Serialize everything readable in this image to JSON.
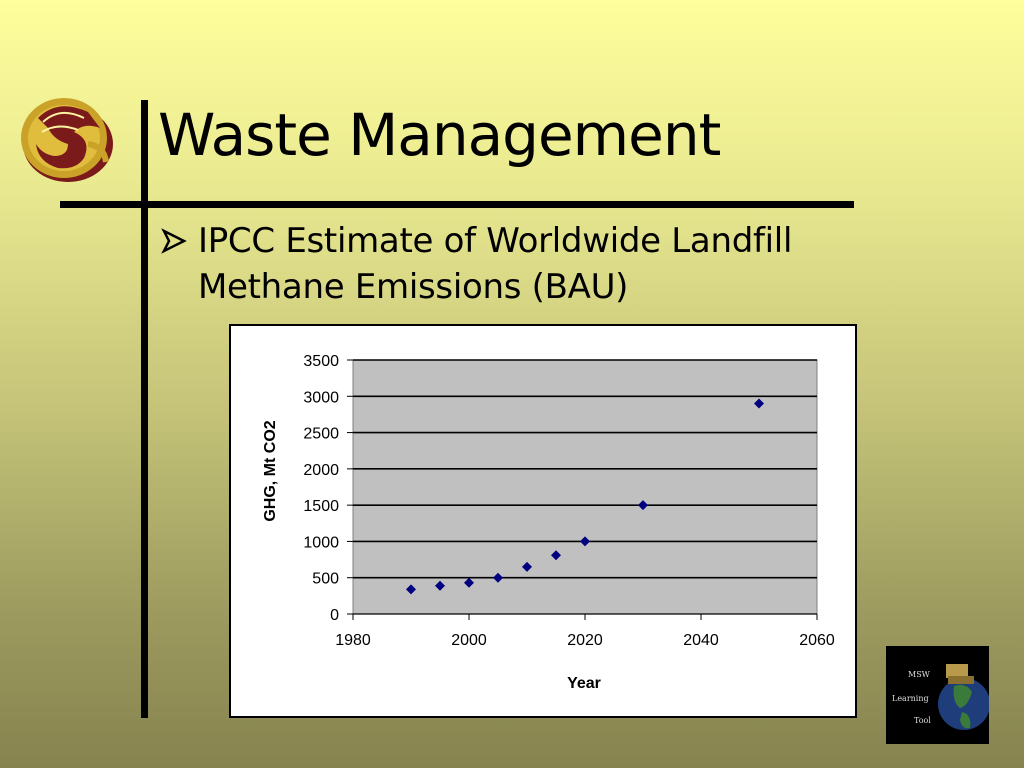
{
  "slide": {
    "title": "Waste Management",
    "bullet": "IPCC Estimate of Worldwide Landfill Methane Emissions (BAU)"
  },
  "logos": {
    "university_seal_icon": "pegasus-seal-icon",
    "msw_tool": {
      "line1": "MSW",
      "line2": "Learning",
      "line3": "Tool"
    }
  },
  "colors": {
    "plot_area": "#c0c0c0",
    "marker": "#000080",
    "frame": "#000000"
  },
  "chart_data": {
    "type": "scatter",
    "title": "",
    "xlabel": "Year",
    "ylabel": "GHG, Mt CO2",
    "xlim": [
      1980,
      2060
    ],
    "ylim": [
      0,
      3500
    ],
    "xticks": [
      1980,
      2000,
      2020,
      2040,
      2060
    ],
    "yticks": [
      0,
      500,
      1000,
      1500,
      2000,
      2500,
      3000,
      3500
    ],
    "grid": "horizontal major gridlines",
    "legend": "none",
    "marker": "diamond",
    "series": [
      {
        "x": [
          1990,
          1995,
          2000,
          2005,
          2010,
          2015,
          2020,
          2030,
          2050
        ],
        "y": [
          340,
          390,
          430,
          500,
          650,
          810,
          1000,
          1500,
          2900
        ]
      }
    ]
  }
}
